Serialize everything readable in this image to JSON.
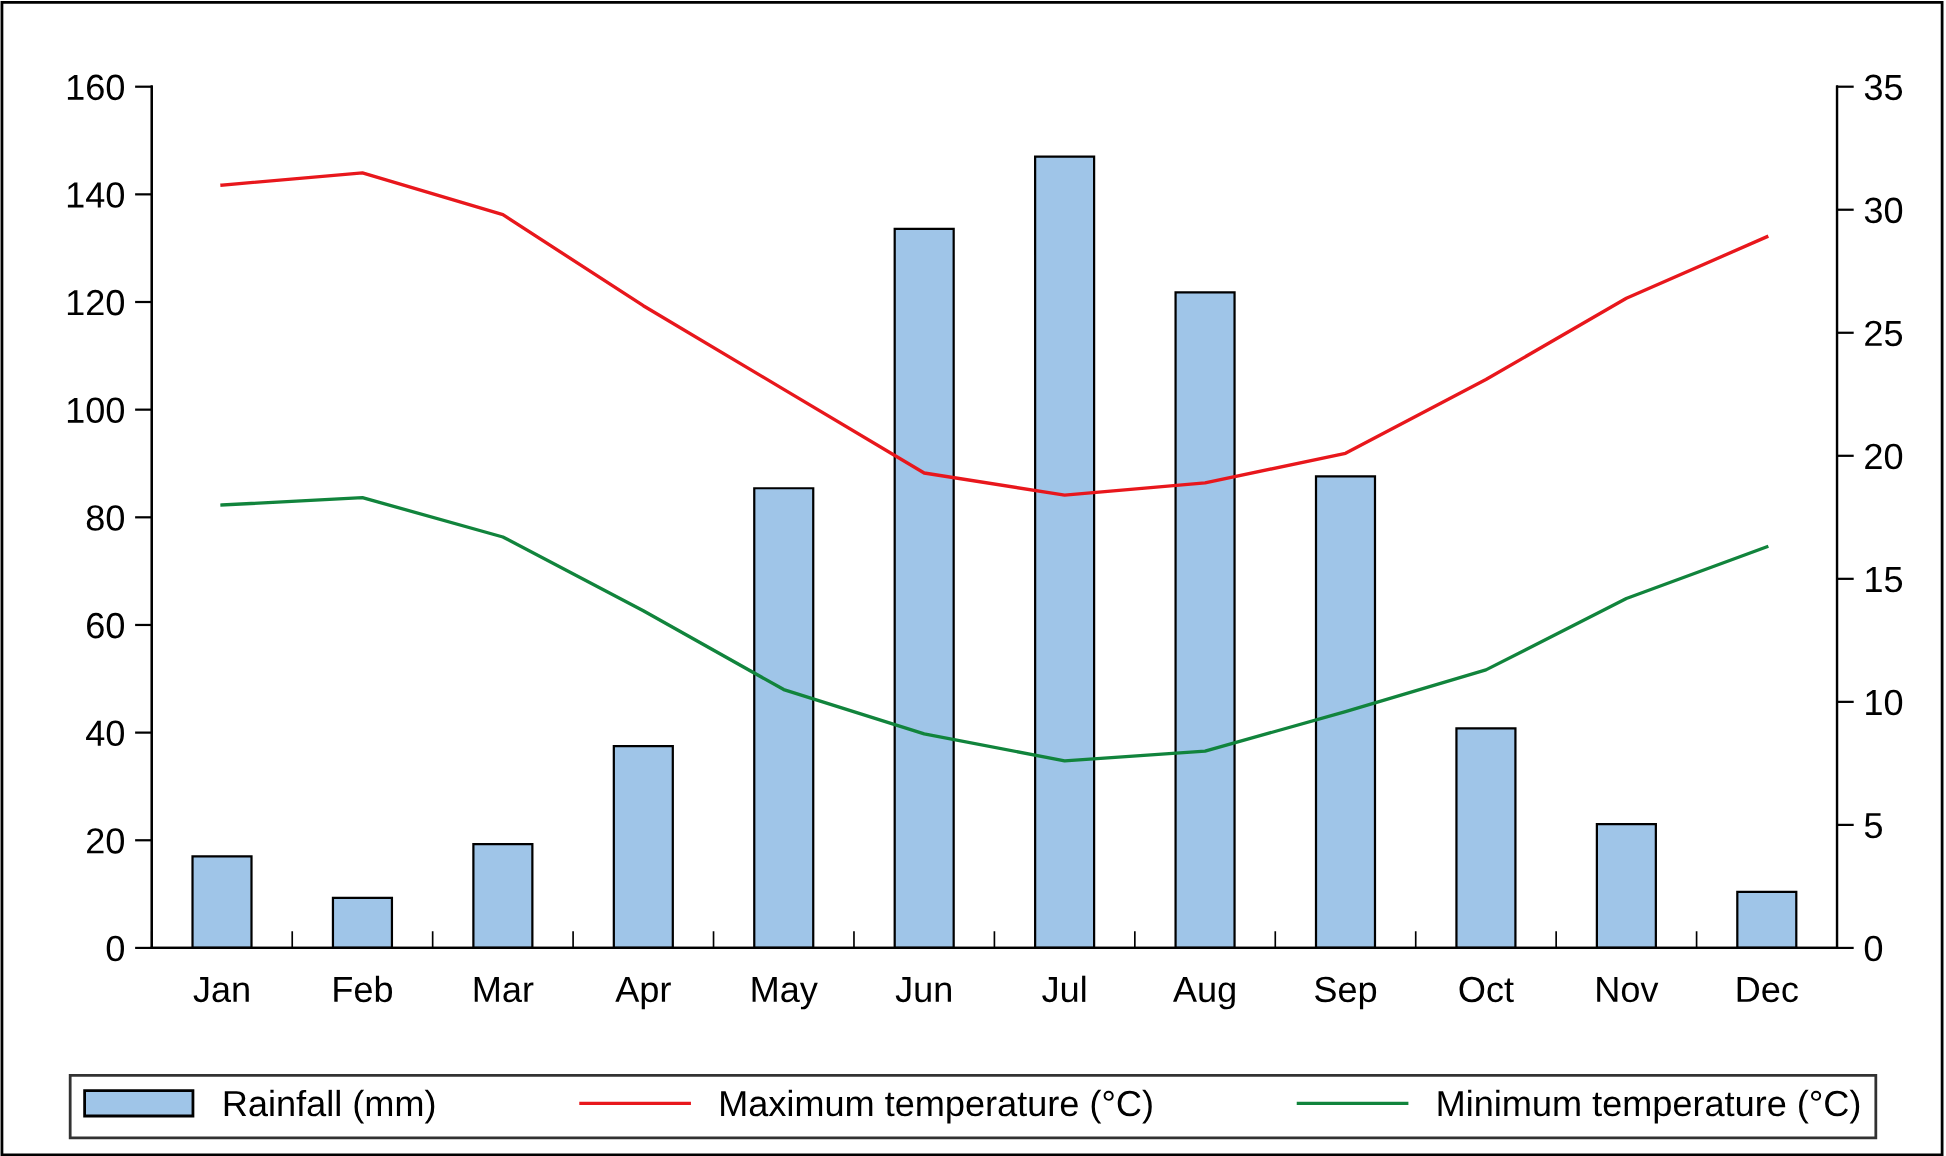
{
  "chart_data": {
    "type": "bar",
    "categories": [
      "Jan",
      "Feb",
      "Mar",
      "Apr",
      "May",
      "Jun",
      "Jul",
      "Aug",
      "Sep",
      "Oct",
      "Nov",
      "Dec"
    ],
    "series": [
      {
        "name": "Rainfall (mm)",
        "color": "#9fc5e8",
        "values": [
          17,
          9.3,
          19.3,
          37.5,
          85.4,
          133.6,
          147,
          121.8,
          87.6,
          40.8,
          23,
          10.4
        ]
      },
      {
        "name": "Maximum temperature (°C)",
        "type": "line",
        "axis": "y2",
        "color": "#e8171c",
        "values": [
          31.0,
          31.5,
          29.8,
          26.1,
          22.7,
          19.3,
          18.4,
          18.9,
          20.1,
          23.1,
          26.4,
          28.9
        ]
      },
      {
        "name": "Minimum temperature (°C)",
        "type": "line",
        "axis": "y2",
        "color": "#11843c",
        "values": [
          18.0,
          18.3,
          16.7,
          13.7,
          10.5,
          8.7,
          7.6,
          8.0,
          9.6,
          11.3,
          14.2,
          16.3
        ]
      }
    ],
    "ylim": [
      0,
      160
    ],
    "yticks": [
      0,
      20,
      40,
      60,
      80,
      100,
      120,
      140,
      160
    ],
    "y2lim": [
      0,
      35
    ],
    "y2ticks": [
      0,
      5,
      10,
      15,
      20,
      25,
      30,
      35
    ],
    "legend": "bottom",
    "grid": false,
    "marker": "none",
    "line_style": "solid"
  }
}
